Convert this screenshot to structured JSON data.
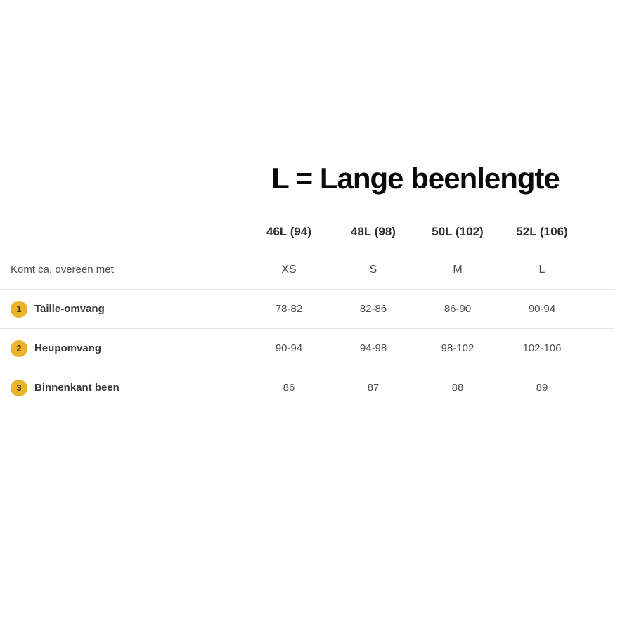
{
  "colors": {
    "accent_badge": "#EBB329",
    "divider": "#E7E7E7",
    "title_text": "#0B0B0B",
    "header_text": "#2D2D2D",
    "body_text": "#4E4E4E"
  },
  "chart_data": {
    "type": "table",
    "title": "L = Lange beenlengte",
    "columns": [
      "46L (94)",
      "48L (98)",
      "50L (102)",
      "52L (106)"
    ],
    "rows": [
      {
        "badge": "",
        "label": "Komt ca. overeen met",
        "values": [
          "XS",
          "S",
          "M",
          "L"
        ]
      },
      {
        "badge": "1",
        "label": "Taille-omvang",
        "values": [
          "78-82",
          "82-86",
          "86-90",
          "90-94"
        ]
      },
      {
        "badge": "2",
        "label": "Heupomvang",
        "values": [
          "90-94",
          "94-98",
          "98-102",
          "102-106"
        ]
      },
      {
        "badge": "3",
        "label": "Binnenkant been",
        "values": [
          "86",
          "87",
          "88",
          "89"
        ]
      }
    ]
  }
}
